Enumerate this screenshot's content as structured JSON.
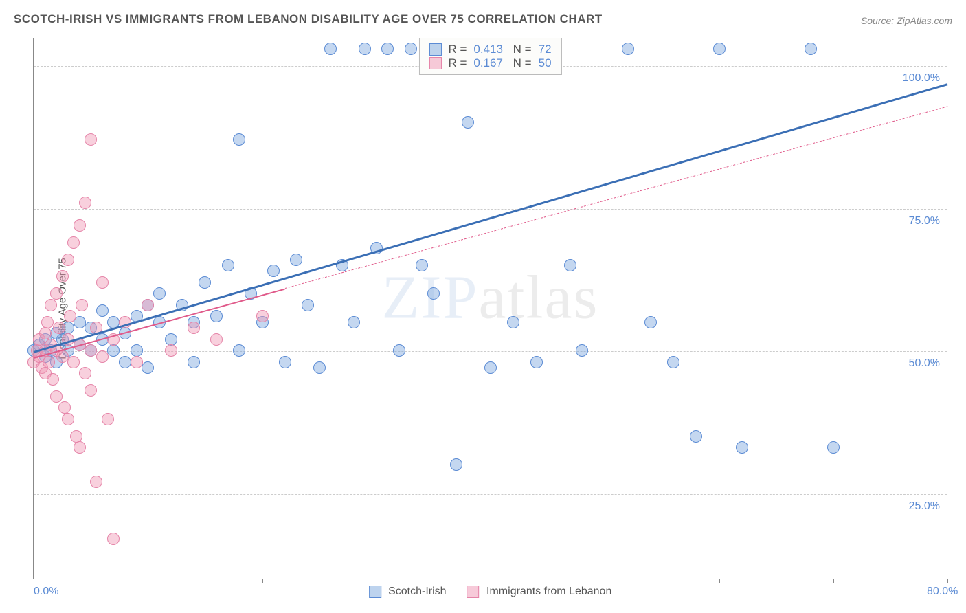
{
  "title": "SCOTCH-IRISH VS IMMIGRANTS FROM LEBANON DISABILITY AGE OVER 75 CORRELATION CHART",
  "source": "Source: ZipAtlas.com",
  "watermark": "ZIPatlas",
  "chart": {
    "type": "scatter",
    "ylabel": "Disability Age Over 75",
    "xlim": [
      0,
      80
    ],
    "ylim": [
      10,
      105
    ],
    "x_ticks": [
      0,
      10,
      20,
      30,
      40,
      50,
      60,
      70,
      80
    ],
    "x_tick_labels_shown": {
      "0": "0.0%",
      "80": "80.0%"
    },
    "y_gridlines": [
      25,
      50,
      75,
      100
    ],
    "y_tick_labels": {
      "25": "25.0%",
      "50": "50.0%",
      "75": "75.0%",
      "100": "100.0%"
    },
    "background_color": "#ffffff",
    "grid_color": "#cccccc",
    "axis_color": "#888888",
    "label_color": "#5b8bd4",
    "title_color": "#555555",
    "title_fontsize": 17,
    "label_fontsize": 16,
    "point_radius": 9,
    "series": [
      {
        "name": "Scotch-Irish",
        "color_fill": "rgba(124,167,221,0.45)",
        "color_stroke": "#5b8bd4",
        "R": 0.413,
        "N": 72,
        "trend": {
          "x1": 0,
          "y1": 50,
          "x2": 80,
          "y2": 97,
          "solid_until_x": 80,
          "color": "#3b6fb5",
          "width": 2.5
        },
        "points": [
          [
            0,
            50
          ],
          [
            0.5,
            51
          ],
          [
            1,
            52
          ],
          [
            1,
            49
          ],
          [
            1.5,
            50
          ],
          [
            2,
            53
          ],
          [
            2,
            48
          ],
          [
            2.5,
            52
          ],
          [
            3,
            50
          ],
          [
            3,
            54
          ],
          [
            4,
            51
          ],
          [
            4,
            55
          ],
          [
            5,
            50
          ],
          [
            5,
            54
          ],
          [
            6,
            52
          ],
          [
            6,
            57
          ],
          [
            7,
            50
          ],
          [
            7,
            55
          ],
          [
            8,
            53
          ],
          [
            8,
            48
          ],
          [
            9,
            56
          ],
          [
            9,
            50
          ],
          [
            10,
            58
          ],
          [
            10,
            47
          ],
          [
            11,
            55
          ],
          [
            11,
            60
          ],
          [
            12,
            52
          ],
          [
            13,
            58
          ],
          [
            14,
            55
          ],
          [
            14,
            48
          ],
          [
            15,
            62
          ],
          [
            16,
            56
          ],
          [
            17,
            65
          ],
          [
            18,
            50
          ],
          [
            18,
            87
          ],
          [
            19,
            60
          ],
          [
            20,
            55
          ],
          [
            21,
            64
          ],
          [
            22,
            48
          ],
          [
            23,
            66
          ],
          [
            24,
            58
          ],
          [
            25,
            47
          ],
          [
            26,
            103
          ],
          [
            27,
            65
          ],
          [
            28,
            55
          ],
          [
            29,
            103
          ],
          [
            30,
            68
          ],
          [
            31,
            103
          ],
          [
            32,
            50
          ],
          [
            33,
            103
          ],
          [
            34,
            65
          ],
          [
            35,
            60
          ],
          [
            36,
            103
          ],
          [
            37,
            30
          ],
          [
            38,
            90
          ],
          [
            39,
            103
          ],
          [
            40,
            47
          ],
          [
            41,
            103
          ],
          [
            42,
            55
          ],
          [
            43,
            103
          ],
          [
            44,
            48
          ],
          [
            45,
            103
          ],
          [
            47,
            65
          ],
          [
            48,
            50
          ],
          [
            52,
            103
          ],
          [
            54,
            55
          ],
          [
            56,
            48
          ],
          [
            58,
            35
          ],
          [
            60,
            103
          ],
          [
            62,
            33
          ],
          [
            68,
            103
          ],
          [
            70,
            33
          ]
        ]
      },
      {
        "name": "Immigrants from Lebanon",
        "color_fill": "rgba(240,150,180,0.45)",
        "color_stroke": "#e584a8",
        "R": 0.167,
        "N": 50,
        "trend": {
          "x1": 0,
          "y1": 49,
          "x2": 80,
          "y2": 93,
          "solid_until_x": 22,
          "color": "#e05a8a",
          "width": 2
        },
        "points": [
          [
            0,
            48
          ],
          [
            0.3,
            50
          ],
          [
            0.5,
            49
          ],
          [
            0.5,
            52
          ],
          [
            0.7,
            47
          ],
          [
            1,
            50
          ],
          [
            1,
            53
          ],
          [
            1,
            46
          ],
          [
            1.2,
            55
          ],
          [
            1.3,
            48
          ],
          [
            1.5,
            51
          ],
          [
            1.5,
            58
          ],
          [
            1.7,
            45
          ],
          [
            2,
            50
          ],
          [
            2,
            60
          ],
          [
            2,
            42
          ],
          [
            2.2,
            54
          ],
          [
            2.5,
            49
          ],
          [
            2.5,
            63
          ],
          [
            2.7,
            40
          ],
          [
            3,
            52
          ],
          [
            3,
            66
          ],
          [
            3,
            38
          ],
          [
            3.2,
            56
          ],
          [
            3.5,
            48
          ],
          [
            3.5,
            69
          ],
          [
            3.7,
            35
          ],
          [
            4,
            51
          ],
          [
            4,
            72
          ],
          [
            4,
            33
          ],
          [
            4.2,
            58
          ],
          [
            4.5,
            46
          ],
          [
            4.5,
            76
          ],
          [
            5,
            50
          ],
          [
            5,
            43
          ],
          [
            5,
            87
          ],
          [
            5.5,
            54
          ],
          [
            5.5,
            27
          ],
          [
            6,
            49
          ],
          [
            6,
            62
          ],
          [
            6.5,
            38
          ],
          [
            7,
            52
          ],
          [
            7,
            17
          ],
          [
            8,
            55
          ],
          [
            9,
            48
          ],
          [
            10,
            58
          ],
          [
            12,
            50
          ],
          [
            14,
            54
          ],
          [
            16,
            52
          ],
          [
            20,
            56
          ]
        ]
      }
    ],
    "legend_bottom": [
      {
        "swatch": "blue",
        "label": "Scotch-Irish"
      },
      {
        "swatch": "pink",
        "label": "Immigrants from Lebanon"
      }
    ],
    "stats_box": [
      {
        "swatch": "blue",
        "R": "0.413",
        "N": "72"
      },
      {
        "swatch": "pink",
        "R": "0.167",
        "N": "50"
      }
    ]
  }
}
